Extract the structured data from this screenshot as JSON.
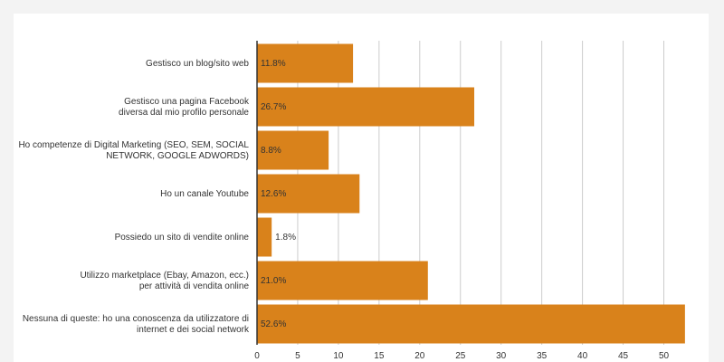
{
  "chart_data": {
    "type": "bar",
    "orientation": "horizontal",
    "categories": [
      [
        "Gestisco un blog/sito web"
      ],
      [
        "Gestisco una pagina Facebook",
        "diversa dal mio profilo personale"
      ],
      [
        "Ho competenze di Digital Marketing (SEO, SEM, SOCIAL",
        "NETWORK, GOOGLE ADWORDS)"
      ],
      [
        "Ho un canale Youtube"
      ],
      [
        "Possiedo un sito di vendite online"
      ],
      [
        "Utilizzo marketplace (Ebay, Amazon, ecc.)",
        "per attività di vendita online"
      ],
      [
        "Nessuna di queste: ho una conoscenza da utilizzatore di",
        "internet e dei social network"
      ]
    ],
    "values": [
      11.8,
      26.7,
      8.8,
      12.6,
      1.8,
      21.0,
      52.6
    ],
    "data_labels": [
      "11.8%",
      "26.7%",
      "8.8%",
      "12.6%",
      "1.8%",
      "21.0%",
      "52.6%"
    ],
    "x_ticks": [
      0,
      5,
      10,
      15,
      20,
      25,
      30,
      35,
      40,
      45,
      50
    ],
    "xlim": [
      0,
      52.6
    ],
    "bar_color": "#d9821b",
    "grid": true,
    "title": "",
    "xlabel": "",
    "ylabel": ""
  }
}
